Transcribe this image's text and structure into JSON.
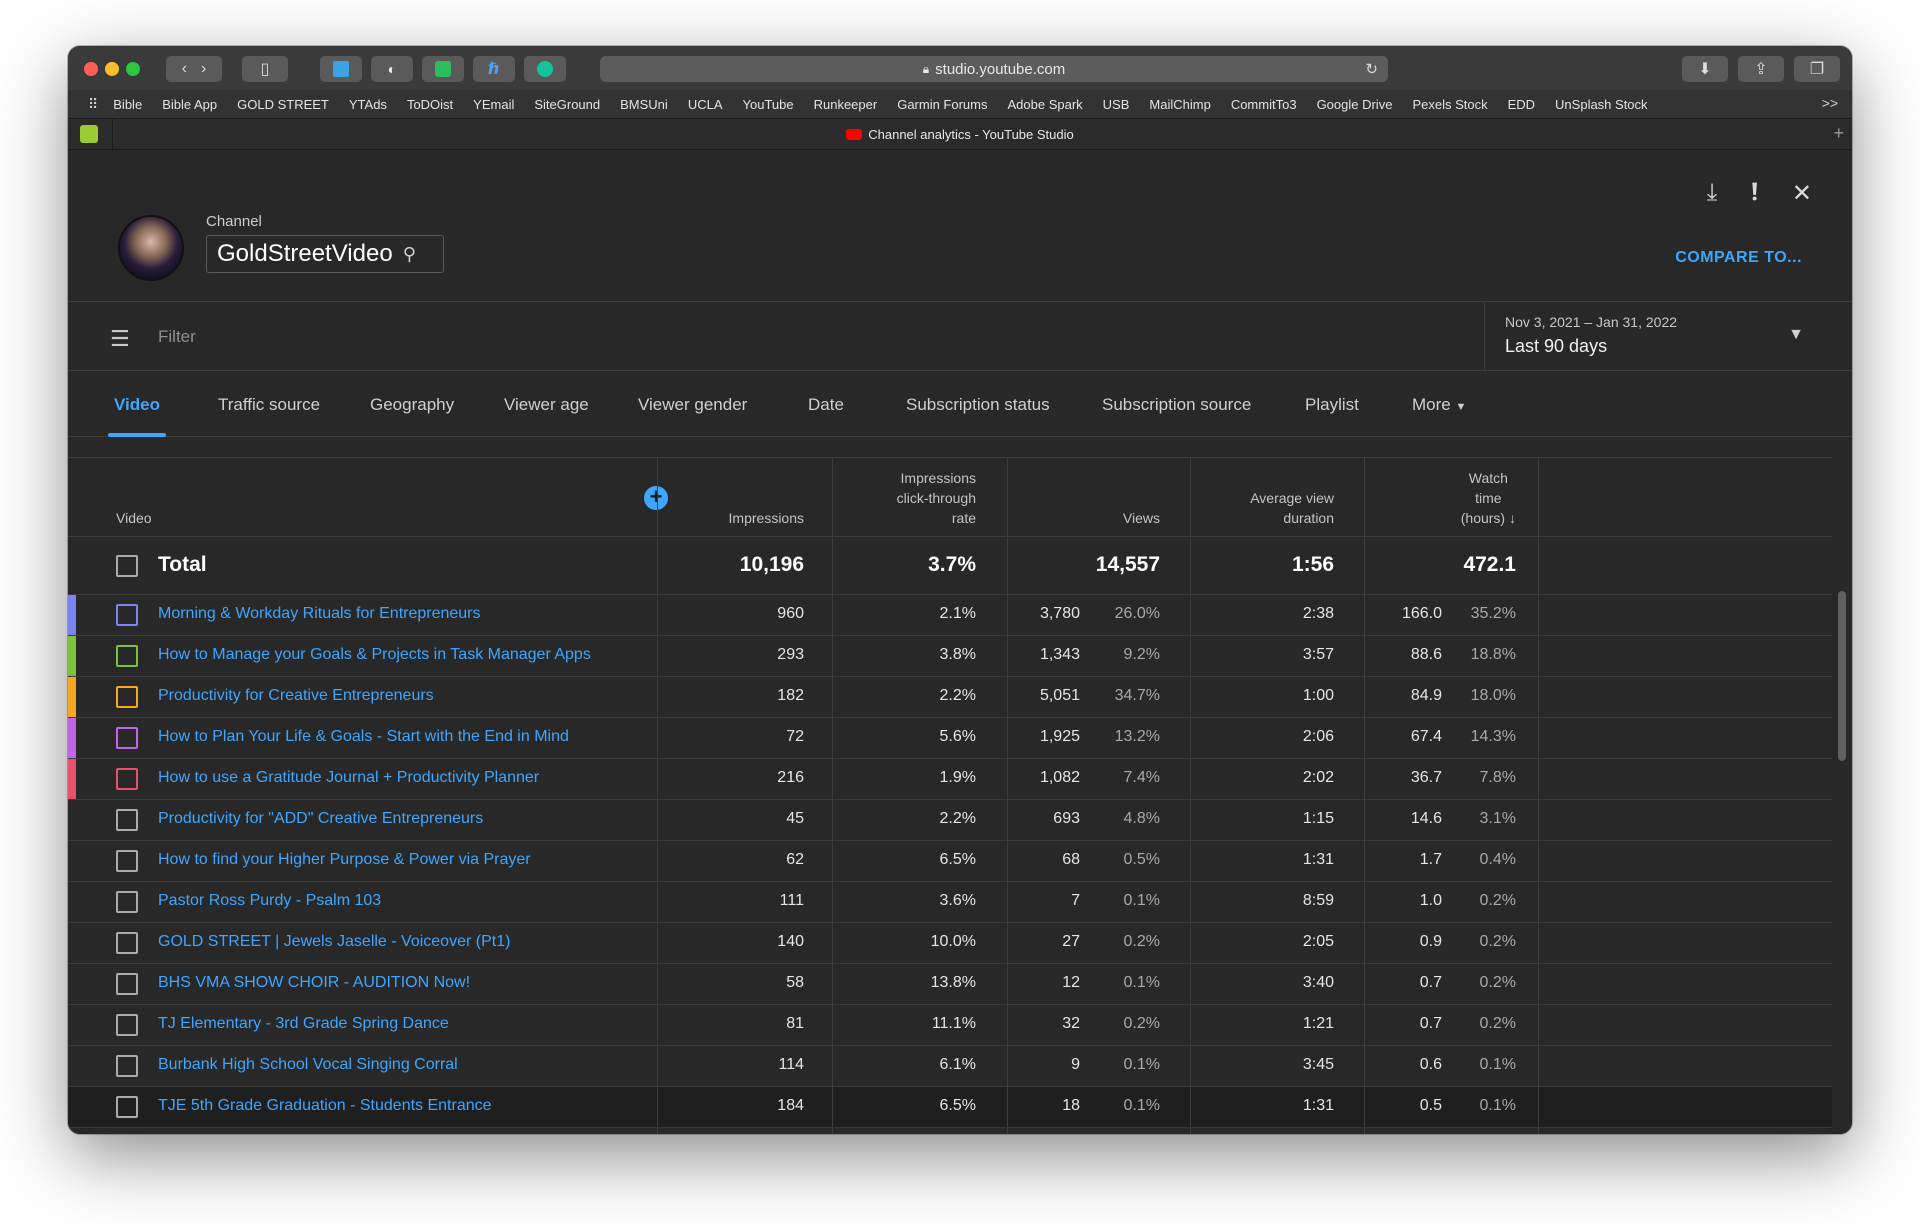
{
  "browser": {
    "url": "studio.youtube.com",
    "tab_title": "Channel analytics - YouTube Studio",
    "bookmarks": [
      "Bible",
      "Bible App",
      "GOLD STREET",
      "YTAds",
      "ToDOist",
      "YEmail",
      "SiteGround",
      "BMSUni",
      "UCLA",
      "YouTube",
      "Runkeeper",
      "Garmin Forums",
      "Adobe Spark",
      "USB",
      "MailChimp",
      "CommitTo3",
      "Google Drive",
      "Pexels Stock",
      "EDD",
      "UnSplash Stock"
    ],
    "bookmarks_more": ">>"
  },
  "header": {
    "channel_label": "Channel",
    "channel_name": "GoldStreetVideo",
    "compare_label": "COMPARE TO..."
  },
  "filter": {
    "placeholder": "Filter",
    "date_range": "Nov 3, 2021 – Jan 31, 2022",
    "date_label": "Last 90 days"
  },
  "tabs": [
    "Video",
    "Traffic source",
    "Geography",
    "Viewer age",
    "Viewer gender",
    "Date",
    "Subscription status",
    "Subscription source",
    "Playlist",
    "More"
  ],
  "table": {
    "headers": {
      "video": "Video",
      "impressions": "Impressions",
      "ctr_1": "Impressions",
      "ctr_2": "click-through",
      "ctr_3": "rate",
      "views": "Views",
      "avd_1": "Average view",
      "avd_2": "duration",
      "wt_1": "Watch",
      "wt_2": "time",
      "wt_3": "(hours)"
    },
    "total": {
      "label": "Total",
      "impressions": "10,196",
      "ctr": "3.7%",
      "views": "14,557",
      "avd": "1:56",
      "watch": "472.1"
    },
    "rows": [
      {
        "title": "Morning & Workday Rituals for Entrepreneurs",
        "impressions": "960",
        "ctr": "2.1%",
        "views": "3,780",
        "views_pct": "26.0%",
        "avd": "2:38",
        "watch": "166.0",
        "watch_pct": "35.2%",
        "color": "#7b84f5"
      },
      {
        "title": "How to Manage your Goals & Projects in Task Manager Apps",
        "impressions": "293",
        "ctr": "3.8%",
        "views": "1,343",
        "views_pct": "9.2%",
        "avd": "3:57",
        "watch": "88.6",
        "watch_pct": "18.8%",
        "color": "#7cc23d"
      },
      {
        "title": "Productivity for Creative Entrepreneurs",
        "impressions": "182",
        "ctr": "2.2%",
        "views": "5,051",
        "views_pct": "34.7%",
        "avd": "1:00",
        "watch": "84.9",
        "watch_pct": "18.0%",
        "color": "#f5a623"
      },
      {
        "title": "How to Plan Your Life & Goals - Start with the End in Mind",
        "impressions": "72",
        "ctr": "5.6%",
        "views": "1,925",
        "views_pct": "13.2%",
        "avd": "2:06",
        "watch": "67.4",
        "watch_pct": "14.3%",
        "color": "#c064e8"
      },
      {
        "title": "How to use a Gratitude Journal + Productivity Planner",
        "impressions": "216",
        "ctr": "1.9%",
        "views": "1,082",
        "views_pct": "7.4%",
        "avd": "2:02",
        "watch": "36.7",
        "watch_pct": "7.8%",
        "color": "#e8506e"
      },
      {
        "title": "Productivity for \"ADD\" Creative Entrepreneurs",
        "impressions": "45",
        "ctr": "2.2%",
        "views": "693",
        "views_pct": "4.8%",
        "avd": "1:15",
        "watch": "14.6",
        "watch_pct": "3.1%",
        "color": ""
      },
      {
        "title": "How to find your Higher Purpose & Power via Prayer",
        "impressions": "62",
        "ctr": "6.5%",
        "views": "68",
        "views_pct": "0.5%",
        "avd": "1:31",
        "watch": "1.7",
        "watch_pct": "0.4%",
        "color": ""
      },
      {
        "title": "Pastor Ross Purdy - Psalm 103",
        "impressions": "111",
        "ctr": "3.6%",
        "views": "7",
        "views_pct": "0.1%",
        "avd": "8:59",
        "watch": "1.0",
        "watch_pct": "0.2%",
        "color": ""
      },
      {
        "title": "GOLD STREET | Jewels Jaselle - Voiceover (Pt1)",
        "impressions": "140",
        "ctr": "10.0%",
        "views": "27",
        "views_pct": "0.2%",
        "avd": "2:05",
        "watch": "0.9",
        "watch_pct": "0.2%",
        "color": ""
      },
      {
        "title": "BHS VMA SHOW CHOIR - AUDITION Now!",
        "impressions": "58",
        "ctr": "13.8%",
        "views": "12",
        "views_pct": "0.1%",
        "avd": "3:40",
        "watch": "0.7",
        "watch_pct": "0.2%",
        "color": ""
      },
      {
        "title": "TJ Elementary - 3rd Grade Spring Dance",
        "impressions": "81",
        "ctr": "11.1%",
        "views": "32",
        "views_pct": "0.2%",
        "avd": "1:21",
        "watch": "0.7",
        "watch_pct": "0.2%",
        "color": ""
      },
      {
        "title": "Burbank High School Vocal Singing Corral",
        "impressions": "114",
        "ctr": "6.1%",
        "views": "9",
        "views_pct": "0.1%",
        "avd": "3:45",
        "watch": "0.6",
        "watch_pct": "0.1%",
        "color": ""
      },
      {
        "title": "TJE 5th Grade Graduation - Students Entrance",
        "impressions": "184",
        "ctr": "6.5%",
        "views": "18",
        "views_pct": "0.1%",
        "avd": "1:31",
        "watch": "0.5",
        "watch_pct": "0.1%",
        "color": ""
      }
    ]
  },
  "colors": {
    "accent": "#3ea6ff",
    "background": "#282828"
  }
}
